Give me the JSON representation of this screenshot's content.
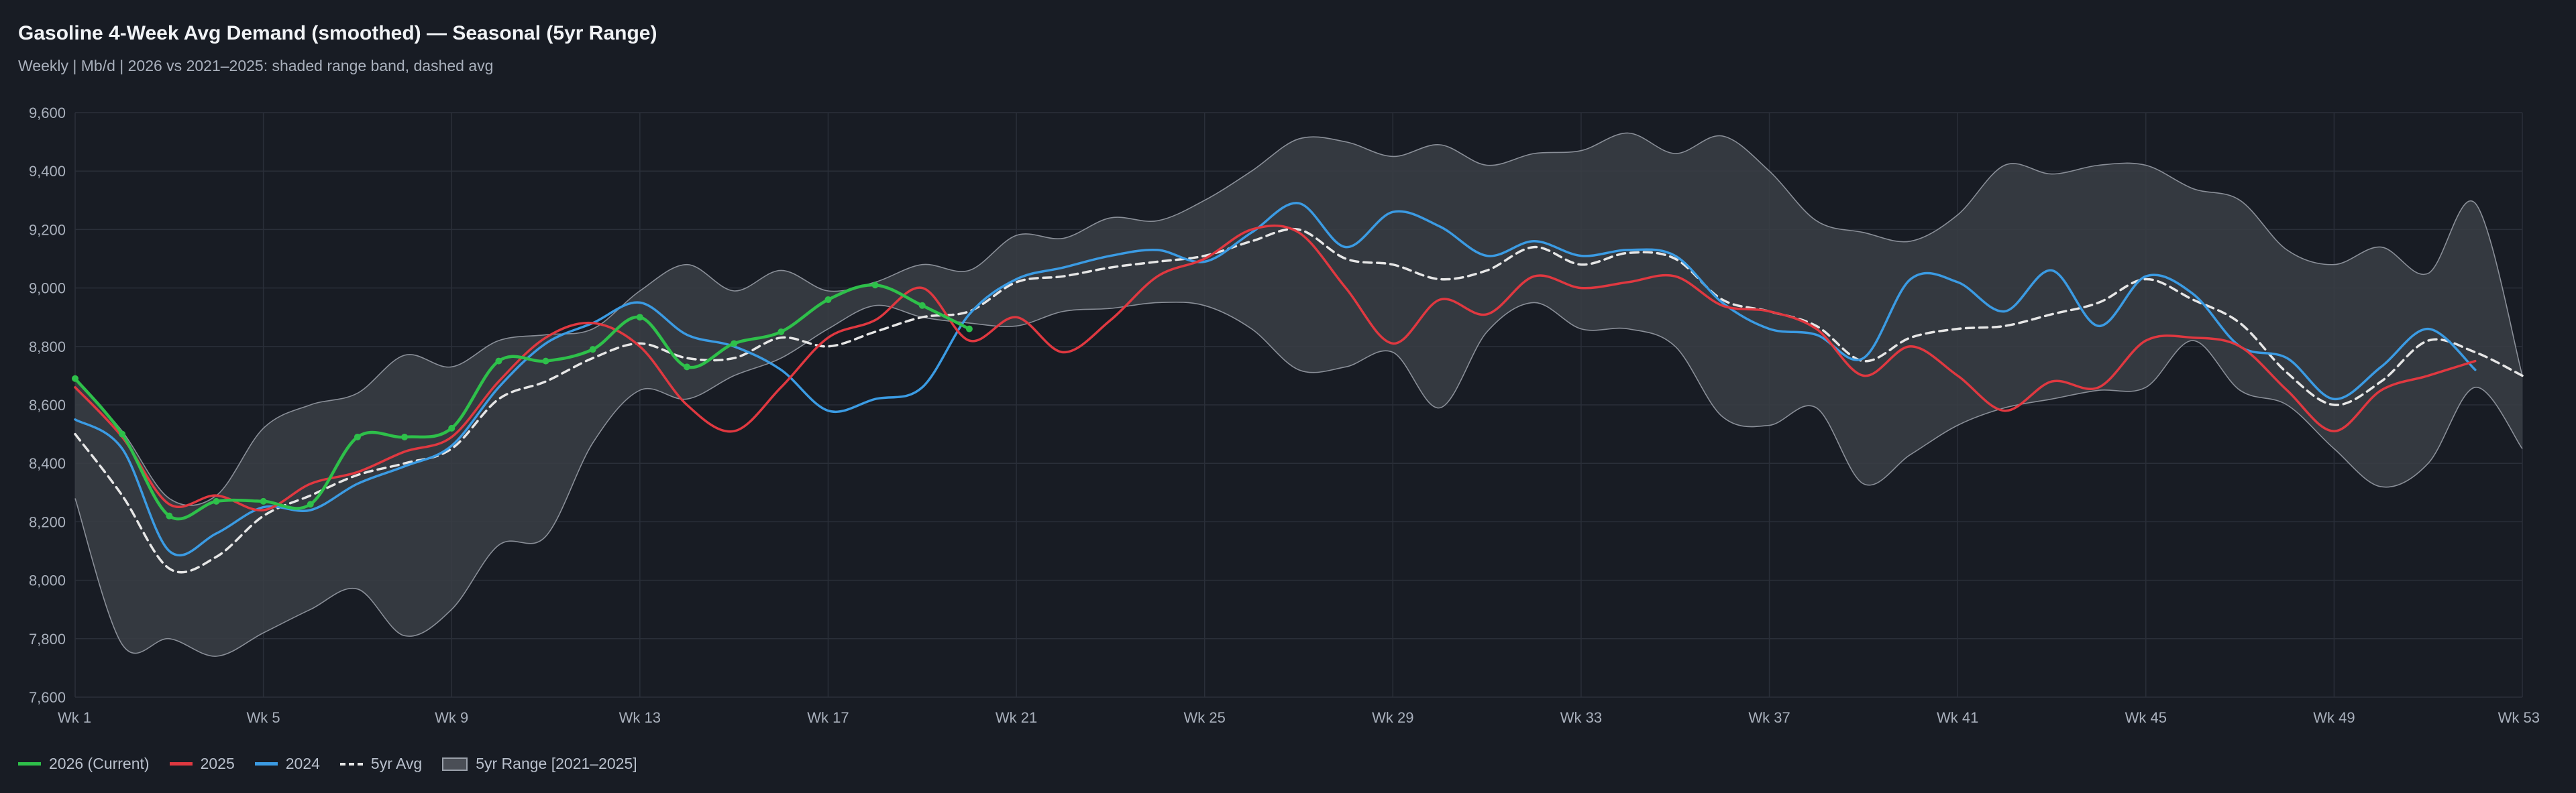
{
  "title": "Gasoline 4-Week Avg Demand (smoothed) — Seasonal (5yr Range)",
  "subtitle": "Weekly | Mb/d | 2026 vs 2021–2025: shaded range band, dashed avg",
  "legend": {
    "items": [
      {
        "label": "2026 (Current)",
        "color": "#2ec04a",
        "style": "line"
      },
      {
        "label": "2025",
        "color": "#e03840",
        "style": "line"
      },
      {
        "label": "2024",
        "color": "#3b9be3",
        "style": "line"
      },
      {
        "label": "5yr Avg",
        "color": "#e6e6e6",
        "style": "dash"
      },
      {
        "label": "5yr Range [2021–2025]",
        "color": "#4a4e56",
        "style": "box"
      }
    ]
  },
  "chart_data": {
    "type": "line",
    "ylim": [
      7600,
      9600
    ],
    "y_ticks": [
      7600,
      7800,
      8000,
      8200,
      8400,
      8600,
      8800,
      9000,
      9200,
      9400,
      9600
    ],
    "y_tick_labels": [
      "7,600",
      "7,800",
      "8,000",
      "8,200",
      "8,400",
      "8,600",
      "8,800",
      "9,000",
      "9,200",
      "9,400",
      "9,600"
    ],
    "xlim": [
      1,
      53
    ],
    "x_ticks": [
      1,
      5,
      9,
      13,
      17,
      21,
      25,
      29,
      33,
      37,
      41,
      45,
      49,
      53
    ],
    "x_tick_labels": [
      "Wk 1",
      "Wk 5",
      "Wk 9",
      "Wk 13",
      "Wk 17",
      "Wk 21",
      "Wk 25",
      "Wk 29",
      "Wk 33",
      "Wk 37",
      "Wk 41",
      "Wk 45",
      "Wk 49",
      "Wk 53"
    ],
    "grid": true,
    "legend_position": "bottom-left",
    "colors": {
      "current": "#2ec04a",
      "y2025": "#e03840",
      "y2024": "#3b9be3",
      "avg": "#e6e6e6",
      "band_fill": "#3a3e45",
      "band_edge": "#8a8f98"
    },
    "range": {
      "x": [
        1,
        2,
        3,
        4,
        5,
        6,
        7,
        8,
        9,
        10,
        11,
        12,
        13,
        14,
        15,
        16,
        17,
        18,
        19,
        20,
        21,
        22,
        23,
        24,
        25,
        26,
        27,
        28,
        29,
        30,
        31,
        32,
        33,
        34,
        35,
        36,
        37,
        38,
        39,
        40,
        41,
        42,
        43,
        44,
        45,
        46,
        47,
        48,
        49,
        50,
        51,
        52,
        53
      ],
      "upper": [
        8690,
        8510,
        8280,
        8290,
        8520,
        8600,
        8640,
        8770,
        8730,
        8820,
        8840,
        8860,
        8990,
        9080,
        8990,
        9060,
        8990,
        9020,
        9080,
        9060,
        9180,
        9170,
        9240,
        9230,
        9300,
        9400,
        9510,
        9500,
        9450,
        9490,
        9420,
        9460,
        9470,
        9530,
        9460,
        9520,
        9400,
        9230,
        9190,
        9160,
        9250,
        9420,
        9390,
        9420,
        9420,
        9340,
        9300,
        9130,
        9080,
        9140,
        9050,
        9290,
        8700
      ],
      "lower": [
        8280,
        7780,
        7800,
        7740,
        7820,
        7900,
        7970,
        7810,
        7900,
        8120,
        8150,
        8470,
        8650,
        8620,
        8700,
        8760,
        8860,
        8940,
        8900,
        8880,
        8870,
        8920,
        8930,
        8950,
        8940,
        8860,
        8720,
        8730,
        8780,
        8590,
        8850,
        8950,
        8860,
        8860,
        8800,
        8560,
        8530,
        8590,
        8330,
        8430,
        8530,
        8590,
        8620,
        8650,
        8660,
        8820,
        8650,
        8600,
        8450,
        8320,
        8400,
        8660,
        8450
      ]
    },
    "series": [
      {
        "name": "2026 (Current)",
        "x": [
          1,
          2,
          3,
          4,
          5,
          6,
          7,
          8,
          9,
          10,
          11,
          12,
          13,
          14,
          15,
          16,
          17,
          18,
          19,
          20
        ],
        "values": [
          8690,
          8500,
          8220,
          8270,
          8270,
          8260,
          8490,
          8490,
          8520,
          8750,
          8750,
          8790,
          8900,
          8730,
          8810,
          8850,
          8960,
          9010,
          8940,
          8860
        ]
      },
      {
        "name": "2025",
        "x": [
          1,
          2,
          3,
          4,
          5,
          6,
          7,
          8,
          9,
          10,
          11,
          12,
          13,
          14,
          15,
          16,
          17,
          18,
          19,
          20,
          21,
          22,
          23,
          24,
          25,
          26,
          27,
          28,
          29,
          30,
          31,
          32,
          33,
          34,
          35,
          36,
          37,
          38,
          39,
          40,
          41,
          42,
          43,
          44,
          45,
          46,
          47,
          48,
          49,
          50,
          51,
          52
        ],
        "values": [
          8660,
          8490,
          8260,
          8290,
          8240,
          8330,
          8370,
          8440,
          8490,
          8680,
          8830,
          8880,
          8800,
          8600,
          8510,
          8660,
          8830,
          8890,
          9000,
          8820,
          8900,
          8780,
          8890,
          9040,
          9100,
          9200,
          9190,
          9000,
          8810,
          8960,
          8910,
          9040,
          9000,
          9020,
          9040,
          8940,
          8920,
          8860,
          8700,
          8800,
          8700,
          8580,
          8680,
          8660,
          8820,
          8830,
          8800,
          8650,
          8510,
          8650,
          8700,
          8750
        ]
      },
      {
        "name": "2024",
        "x": [
          1,
          2,
          3,
          4,
          5,
          6,
          7,
          8,
          9,
          10,
          11,
          12,
          13,
          14,
          15,
          16,
          17,
          18,
          19,
          20,
          21,
          22,
          23,
          24,
          25,
          26,
          27,
          28,
          29,
          30,
          31,
          32,
          33,
          34,
          35,
          36,
          37,
          38,
          39,
          40,
          41,
          42,
          43,
          44,
          45,
          46,
          47,
          48,
          49,
          50,
          51,
          52
        ],
        "values": [
          8550,
          8450,
          8100,
          8160,
          8250,
          8240,
          8330,
          8390,
          8460,
          8660,
          8810,
          8880,
          8950,
          8840,
          8800,
          8720,
          8580,
          8620,
          8660,
          8910,
          9030,
          9070,
          9110,
          9130,
          9090,
          9190,
          9290,
          9140,
          9260,
          9210,
          9110,
          9160,
          9110,
          9130,
          9110,
          8950,
          8860,
          8840,
          8760,
          9030,
          9020,
          8920,
          9060,
          8870,
          9040,
          8980,
          8800,
          8760,
          8620,
          8730,
          8860,
          8720
        ]
      },
      {
        "name": "5yr Avg",
        "x": [
          1,
          2,
          3,
          4,
          5,
          6,
          7,
          8,
          9,
          10,
          11,
          12,
          13,
          14,
          15,
          16,
          17,
          18,
          19,
          20,
          21,
          22,
          23,
          24,
          25,
          26,
          27,
          28,
          29,
          30,
          31,
          32,
          33,
          34,
          35,
          36,
          37,
          38,
          39,
          40,
          41,
          42,
          43,
          44,
          45,
          46,
          47,
          48,
          49,
          50,
          51,
          52,
          53
        ],
        "values": [
          8500,
          8290,
          8040,
          8080,
          8220,
          8290,
          8360,
          8400,
          8450,
          8620,
          8680,
          8760,
          8810,
          8760,
          8760,
          8830,
          8800,
          8850,
          8900,
          8920,
          9020,
          9040,
          9070,
          9090,
          9110,
          9160,
          9200,
          9100,
          9080,
          9030,
          9060,
          9140,
          9080,
          9120,
          9100,
          8960,
          8920,
          8870,
          8750,
          8830,
          8860,
          8870,
          8910,
          8950,
          9030,
          8960,
          8880,
          8710,
          8600,
          8680,
          8820,
          8780,
          8700
        ]
      }
    ]
  }
}
